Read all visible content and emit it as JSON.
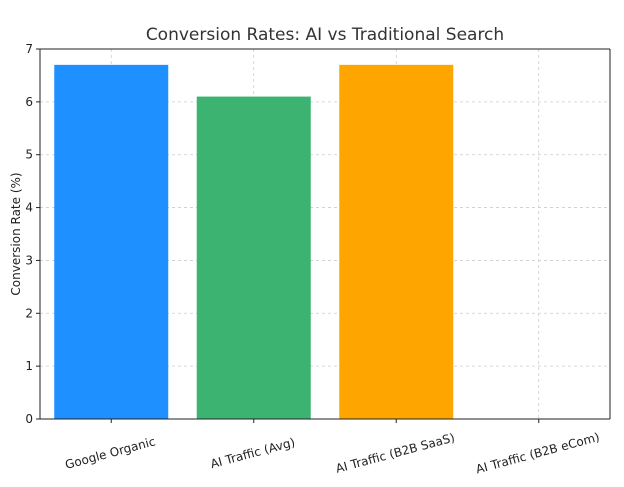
{
  "chart_data": {
    "type": "bar",
    "title": "Conversion Rates: AI vs Traditional Search",
    "xlabel": "",
    "ylabel": "Conversion Rate (%)",
    "categories": [
      "Google Organic",
      "AI Traffic (Avg)",
      "AI Traffic (B2B SaaS)",
      "AI Traffic (B2B eCom)"
    ],
    "values": [
      6.7,
      6.1,
      6.7,
      0
    ],
    "colors": [
      "#1E90FF",
      "#3CB371",
      "#FFA500",
      "#FFFFFF"
    ],
    "ylim": [
      0,
      7
    ],
    "yticks": [
      0,
      1,
      2,
      3,
      4,
      5,
      6,
      7
    ],
    "grid": true,
    "legend": "none"
  }
}
